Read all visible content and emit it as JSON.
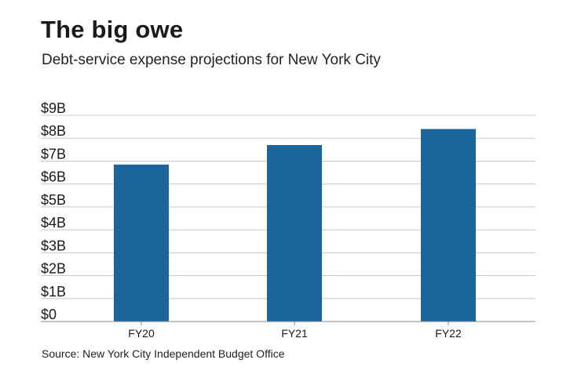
{
  "header": {
    "title": "The big owe",
    "subtitle": "Debt-service expense projections for New York City"
  },
  "footer": {
    "source": "Source: New York City Independent Budget Office"
  },
  "chart_data": {
    "type": "bar",
    "categories": [
      "FY20",
      "FY21",
      "FY22"
    ],
    "values": [
      6.85,
      7.7,
      8.4
    ],
    "title": "The big owe",
    "subtitle": "Debt-service expense projections for New York City",
    "xlabel": "",
    "ylabel": "",
    "ylim": [
      0,
      9
    ],
    "yticks": [
      "$0",
      "$1B",
      "$2B",
      "$3B",
      "$4B",
      "$5B",
      "$6B",
      "$7B",
      "$8B",
      "$9B"
    ],
    "grid": true,
    "legend": "none",
    "colors": {
      "bar": "#1c649c",
      "grid": "#c8c8c8",
      "axis": "#888888"
    }
  }
}
